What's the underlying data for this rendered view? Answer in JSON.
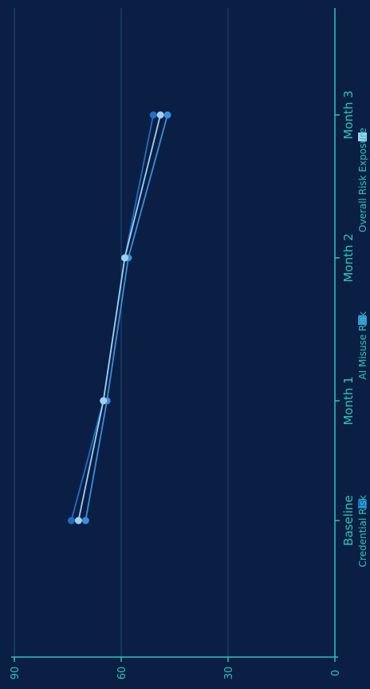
{
  "chart_data": {
    "type": "line",
    "orientation": "rotated-90-ccw",
    "categories": [
      "Baseline",
      "Month 1",
      "Month 2",
      "Month 3"
    ],
    "series": [
      {
        "name": "Credential Risk",
        "values": [
          74,
          65,
          59,
          51
        ],
        "color": "#1f6fc4"
      },
      {
        "name": "AI Misuse Risk",
        "values": [
          70,
          64,
          58,
          47
        ],
        "color": "#3a8fdc"
      },
      {
        "name": "Overall Risk Exposure",
        "values": [
          72,
          65,
          59,
          49
        ],
        "color": "#9fd0ef"
      }
    ],
    "yticks": [
      0,
      30,
      60,
      90
    ],
    "ylim": [
      0,
      90
    ],
    "grid": true,
    "legend": "bottom",
    "colors": {
      "background": "#0b1f45",
      "axis": "#2ec4b6",
      "grid": "#1d4f66"
    }
  }
}
